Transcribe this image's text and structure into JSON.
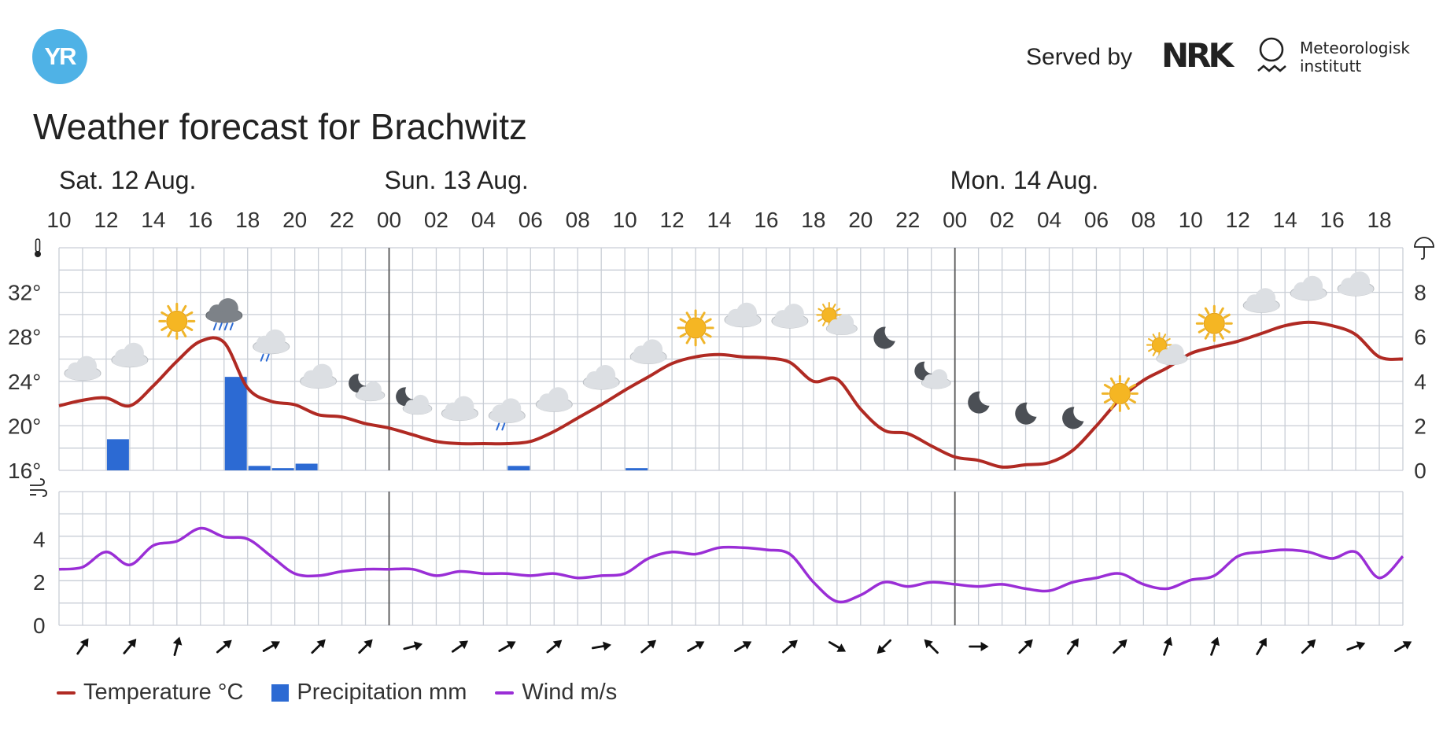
{
  "header": {
    "logo_text": "YR",
    "served_by": "Served by",
    "nrk_text": "NRK",
    "met_line1": "Meteorologisk",
    "met_line2": "institutt"
  },
  "title": "Weather forecast for Brachwitz",
  "colors": {
    "temperature": "#b02a23",
    "precipitation": "#2c6ad3",
    "wind": "#9a2ed6",
    "grid": "#c9ced6",
    "logo": "#4fb2e6"
  },
  "chart_data": [
    {
      "type": "line",
      "days": [
        {
          "label": "Sat. 12 Aug.",
          "start_hour": 10
        },
        {
          "label": "Sun. 13 Aug.",
          "start_hour": 24
        },
        {
          "label": "Mon. 14 Aug.",
          "start_hour": 48
        }
      ],
      "hour_tick_labels": [
        "10",
        "12",
        "14",
        "16",
        "18",
        "20",
        "22",
        "00",
        "02",
        "04",
        "06",
        "08",
        "10",
        "12",
        "14",
        "16",
        "18",
        "20",
        "22",
        "00",
        "02",
        "04",
        "06",
        "08",
        "10",
        "12",
        "14",
        "16",
        "18"
      ],
      "x_range_hours": [
        10,
        67
      ],
      "temp_axis": {
        "unit": "°",
        "ticks": [
          16,
          20,
          24,
          28,
          32
        ],
        "ylim": [
          16,
          36
        ]
      },
      "precip_axis": {
        "ticks": [
          0,
          2,
          4,
          6,
          8
        ],
        "ylim": [
          0,
          10
        ]
      },
      "temperature": {
        "name": "Temperature °C",
        "x": [
          10,
          11,
          12,
          13,
          14,
          15,
          16,
          17,
          18,
          19,
          20,
          21,
          22,
          23,
          24,
          25,
          26,
          27,
          28,
          29,
          30,
          31,
          32,
          33,
          34,
          35,
          36,
          37,
          38,
          39,
          40,
          41,
          42,
          43,
          44,
          45,
          46,
          47,
          48,
          49,
          50,
          51,
          52,
          53,
          54,
          55,
          56,
          57,
          58,
          59,
          60,
          61,
          62,
          63,
          64,
          65,
          66,
          67
        ],
        "y": [
          21.8,
          22.3,
          22.5,
          21.8,
          23.6,
          25.8,
          27.6,
          27.5,
          23.4,
          22.2,
          21.9,
          21.0,
          20.8,
          20.2,
          19.8,
          19.2,
          18.6,
          18.4,
          18.4,
          18.4,
          18.6,
          19.5,
          20.7,
          21.9,
          23.2,
          24.4,
          25.6,
          26.2,
          26.4,
          26.2,
          26.1,
          25.7,
          24.0,
          24.2,
          21.5,
          19.6,
          19.3,
          18.2,
          17.2,
          16.9,
          16.3,
          16.5,
          16.7,
          17.8,
          20.0,
          22.4,
          24.1,
          25.2,
          26.5,
          27.1,
          27.6,
          28.3,
          29.0,
          29.3,
          29.0,
          28.2,
          26.2,
          26.0
        ]
      },
      "precipitation": {
        "name": "Precipitation mm",
        "x": [
          12,
          17,
          18,
          19,
          20,
          29,
          34
        ],
        "values": [
          1.4,
          4.2,
          0.2,
          0.1,
          0.3,
          0.2,
          0.1
        ]
      },
      "symbols": [
        {
          "x": 11,
          "y": 25.0,
          "icon": "cloud-icon"
        },
        {
          "x": 13,
          "y": 26.2,
          "icon": "cloud-icon"
        },
        {
          "x": 15,
          "y": 29.4,
          "icon": "sun-icon"
        },
        {
          "x": 17,
          "y": 30.2,
          "icon": "heavy-rain-cloud-icon"
        },
        {
          "x": 19,
          "y": 27.4,
          "icon": "light-rain-cloud-icon"
        },
        {
          "x": 21,
          "y": 24.3,
          "icon": "cloud-icon"
        },
        {
          "x": 23,
          "y": 23.4,
          "icon": "partly-cloudy-night-icon"
        },
        {
          "x": 25,
          "y": 22.2,
          "icon": "partly-cloudy-night-icon"
        },
        {
          "x": 27,
          "y": 21.4,
          "icon": "cloud-icon"
        },
        {
          "x": 29,
          "y": 21.2,
          "icon": "light-rain-cloud-icon"
        },
        {
          "x": 31,
          "y": 22.2,
          "icon": "cloud-icon"
        },
        {
          "x": 33,
          "y": 24.2,
          "icon": "cloud-icon"
        },
        {
          "x": 35,
          "y": 26.5,
          "icon": "cloud-icon"
        },
        {
          "x": 37,
          "y": 28.8,
          "icon": "sun-icon"
        },
        {
          "x": 39,
          "y": 29.8,
          "icon": "cloud-icon"
        },
        {
          "x": 41,
          "y": 29.7,
          "icon": "cloud-icon"
        },
        {
          "x": 43,
          "y": 29.4,
          "icon": "partly-cloudy-day-icon"
        },
        {
          "x": 45,
          "y": 27.9,
          "icon": "moon-icon"
        },
        {
          "x": 47,
          "y": 24.5,
          "icon": "partly-cloudy-night-icon"
        },
        {
          "x": 49,
          "y": 22.1,
          "icon": "moon-icon"
        },
        {
          "x": 51,
          "y": 21.1,
          "icon": "moon-icon"
        },
        {
          "x": 53,
          "y": 20.7,
          "icon": "moon-icon"
        },
        {
          "x": 55,
          "y": 22.9,
          "icon": "sun-icon"
        },
        {
          "x": 57,
          "y": 26.7,
          "icon": "partly-cloudy-day-icon"
        },
        {
          "x": 59,
          "y": 29.2,
          "icon": "sun-icon"
        },
        {
          "x": 61,
          "y": 31.1,
          "icon": "cloud-icon"
        },
        {
          "x": 63,
          "y": 32.2,
          "icon": "cloud-icon"
        },
        {
          "x": 65,
          "y": 32.6,
          "icon": "cloud-icon"
        }
      ]
    },
    {
      "type": "line",
      "wind_axis": {
        "ticks": [
          0,
          2,
          4
        ],
        "ylim": [
          0,
          6.2
        ]
      },
      "wind": {
        "name": "Wind m/s",
        "x": [
          10,
          11,
          12,
          13,
          14,
          15,
          16,
          17,
          18,
          19,
          20,
          21,
          22,
          23,
          24,
          25,
          26,
          27,
          28,
          29,
          30,
          31,
          32,
          33,
          34,
          35,
          36,
          37,
          38,
          39,
          40,
          41,
          42,
          43,
          44,
          45,
          46,
          47,
          48,
          49,
          50,
          51,
          52,
          53,
          54,
          55,
          56,
          57,
          58,
          59,
          60,
          61,
          62,
          63,
          64,
          65,
          66,
          67
        ],
        "y": [
          2.6,
          2.7,
          3.4,
          2.8,
          3.7,
          3.9,
          4.5,
          4.1,
          4.0,
          3.2,
          2.4,
          2.3,
          2.5,
          2.6,
          2.6,
          2.6,
          2.3,
          2.5,
          2.4,
          2.4,
          2.3,
          2.4,
          2.2,
          2.3,
          2.4,
          3.1,
          3.4,
          3.3,
          3.6,
          3.6,
          3.5,
          3.3,
          2.0,
          1.1,
          1.4,
          2.0,
          1.8,
          2.0,
          1.9,
          1.8,
          1.9,
          1.7,
          1.6,
          2.0,
          2.2,
          2.4,
          1.9,
          1.7,
          2.1,
          2.3,
          3.2,
          3.4,
          3.5,
          3.4,
          3.1,
          3.4,
          2.2,
          3.2
        ]
      },
      "wind_direction_arrows": {
        "x": [
          11,
          13,
          15,
          17,
          19,
          21,
          23,
          25,
          27,
          29,
          31,
          33,
          35,
          37,
          39,
          41,
          43,
          45,
          47,
          49,
          51,
          53,
          55,
          57,
          59,
          61,
          63,
          65,
          67
        ],
        "heading_deg": [
          35,
          40,
          15,
          50,
          60,
          45,
          45,
          75,
          55,
          60,
          50,
          80,
          50,
          60,
          60,
          50,
          120,
          225,
          315,
          90,
          45,
          35,
          45,
          20,
          20,
          30,
          45,
          70,
          60
        ]
      }
    }
  ],
  "legend": {
    "temperature": "Temperature °C",
    "precipitation": "Precipitation mm",
    "wind": "Wind m/s"
  }
}
